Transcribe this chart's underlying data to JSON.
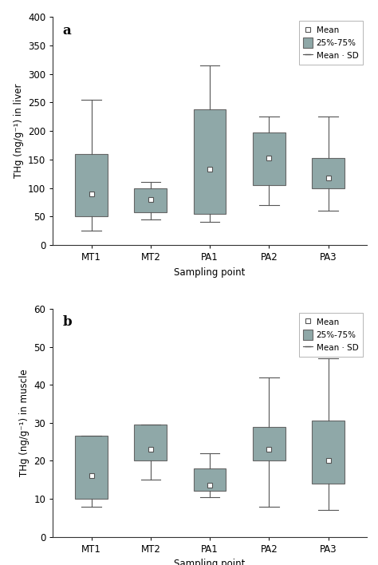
{
  "categories": [
    "MT1",
    "MT2",
    "PA1",
    "PA2",
    "PA3"
  ],
  "panel_a": {
    "label": "a",
    "ylabel": "THg (ng/g⁻¹) in liver",
    "ylim": [
      0,
      400
    ],
    "yticks": [
      0,
      50,
      100,
      150,
      200,
      250,
      300,
      350,
      400
    ],
    "means": [
      90,
      80,
      133,
      152,
      117
    ],
    "q1": [
      50,
      57,
      55,
      105,
      100
    ],
    "q3": [
      160,
      100,
      238,
      197,
      152
    ],
    "whisker_low": [
      25,
      45,
      40,
      70,
      60
    ],
    "whisker_high": [
      255,
      110,
      315,
      225,
      225
    ]
  },
  "panel_b": {
    "label": "b",
    "ylabel": "THg (ng/g⁻¹) in muscle",
    "ylim": [
      0,
      60
    ],
    "yticks": [
      0,
      10,
      20,
      30,
      40,
      50,
      60
    ],
    "means": [
      16,
      23,
      13.5,
      23,
      20
    ],
    "q1": [
      10,
      20,
      12,
      20,
      14
    ],
    "q3": [
      26.5,
      29.5,
      18,
      29,
      30.5
    ],
    "whisker_low": [
      8,
      15,
      10.5,
      8,
      7
    ],
    "whisker_high": [
      26.5,
      29.5,
      22,
      42,
      47
    ]
  },
  "box_color": "#8fa8a8",
  "box_edgecolor": "#666666",
  "mean_marker": "s",
  "mean_markercolor": "white",
  "mean_markeredgecolor": "#555555",
  "mean_markersize": 4,
  "whisker_color": "#555555",
  "xlabel": "Sampling point",
  "legend_labels": [
    "Mean",
    "25%-75%",
    "Mean · SD"
  ],
  "box_width": 0.55,
  "background_color": "#ffffff",
  "font_size": 8.5,
  "label_font_size": 12
}
